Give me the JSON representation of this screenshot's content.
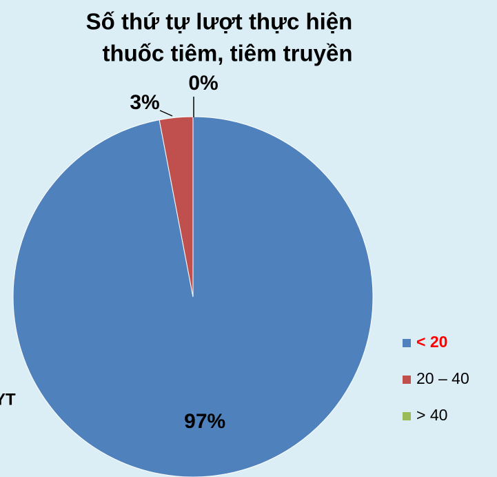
{
  "chart_data": {
    "type": "pie",
    "title": [
      "Số thứ tự lượt thực hiện",
      "thuốc tiêm, tiêm truyền"
    ],
    "categories": [
      "< 20",
      "20 – 40",
      "> 40"
    ],
    "values": [
      97,
      3,
      0
    ],
    "value_labels": [
      "97%",
      "3%",
      "0%"
    ],
    "colors": [
      "#4f81bd",
      "#c0504d",
      "#9bbb59"
    ],
    "legend_label_colors": [
      "#ff0000",
      "#000000",
      "#000000"
    ],
    "legend": "right",
    "annotation": "YT"
  }
}
